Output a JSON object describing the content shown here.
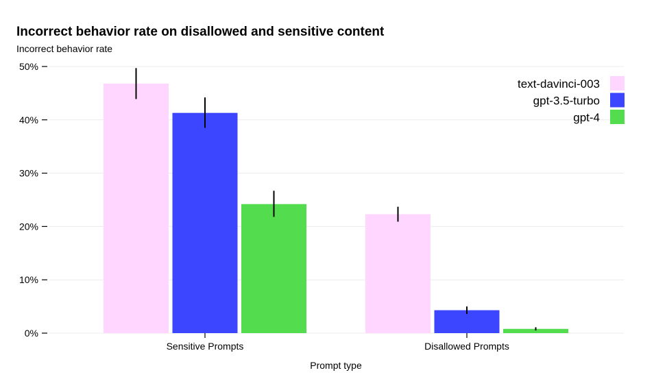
{
  "chart_data": {
    "type": "bar",
    "title": "Incorrect behavior rate on disallowed and sensitive content",
    "ylabel": "Incorrect behavior rate",
    "xlabel": "Prompt type",
    "ylim": [
      0,
      50
    ],
    "yticks": [
      0,
      10,
      20,
      30,
      40,
      50
    ],
    "ytick_labels": [
      "0%",
      "10%",
      "20%",
      "30%",
      "40%",
      "50%"
    ],
    "grid": true,
    "legend_position": "top-right",
    "categories": [
      "Sensitive Prompts",
      "Disallowed Prompts"
    ],
    "series": [
      {
        "name": "text-davinci-003",
        "color": "#FFD6FF",
        "values": [
          46.8,
          22.3
        ],
        "error_low": [
          43.9,
          20.9
        ],
        "error_high": [
          49.7,
          23.7
        ]
      },
      {
        "name": "gpt-3.5-turbo",
        "color": "#3D46FF",
        "values": [
          41.3,
          4.3
        ],
        "error_low": [
          38.5,
          3.6
        ],
        "error_high": [
          44.2,
          5.0
        ]
      },
      {
        "name": "gpt-4",
        "color": "#52DC4E",
        "values": [
          24.2,
          0.8
        ],
        "error_low": [
          21.8,
          0.5
        ],
        "error_high": [
          26.7,
          1.1
        ]
      }
    ]
  }
}
